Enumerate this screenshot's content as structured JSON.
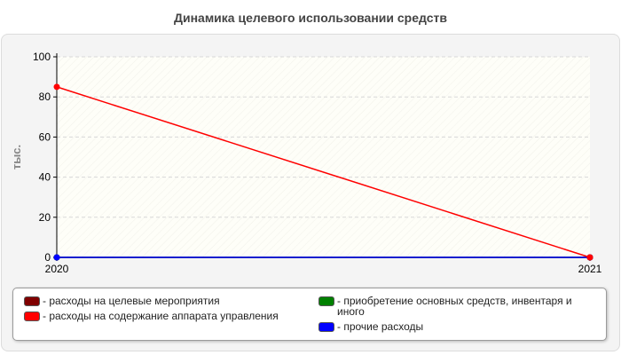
{
  "chart_data": {
    "type": "line",
    "title": "Динамика целевого использовании средств",
    "ylabel": "тыс.",
    "xlabel": "",
    "x": [
      "2020",
      "2021"
    ],
    "ylim": [
      0,
      100
    ],
    "yticks": [
      "0",
      "20",
      "40",
      "60",
      "80",
      "100"
    ],
    "grid": true,
    "legend_position": "bottom",
    "series": [
      {
        "name": "- расходы на целевые мероприятия",
        "values": [
          0,
          0
        ],
        "color": "#800000"
      },
      {
        "name": "- приобретение основных средств, инвентаря и иного",
        "values": [
          0,
          0
        ],
        "color": "#008000"
      },
      {
        "name": "- прочие расходы",
        "values": [
          0,
          0
        ],
        "color": "#0000ff"
      },
      {
        "name": "- расходы на содержание аппарата управления",
        "values": [
          85,
          0
        ],
        "color": "#ff0000"
      }
    ]
  }
}
